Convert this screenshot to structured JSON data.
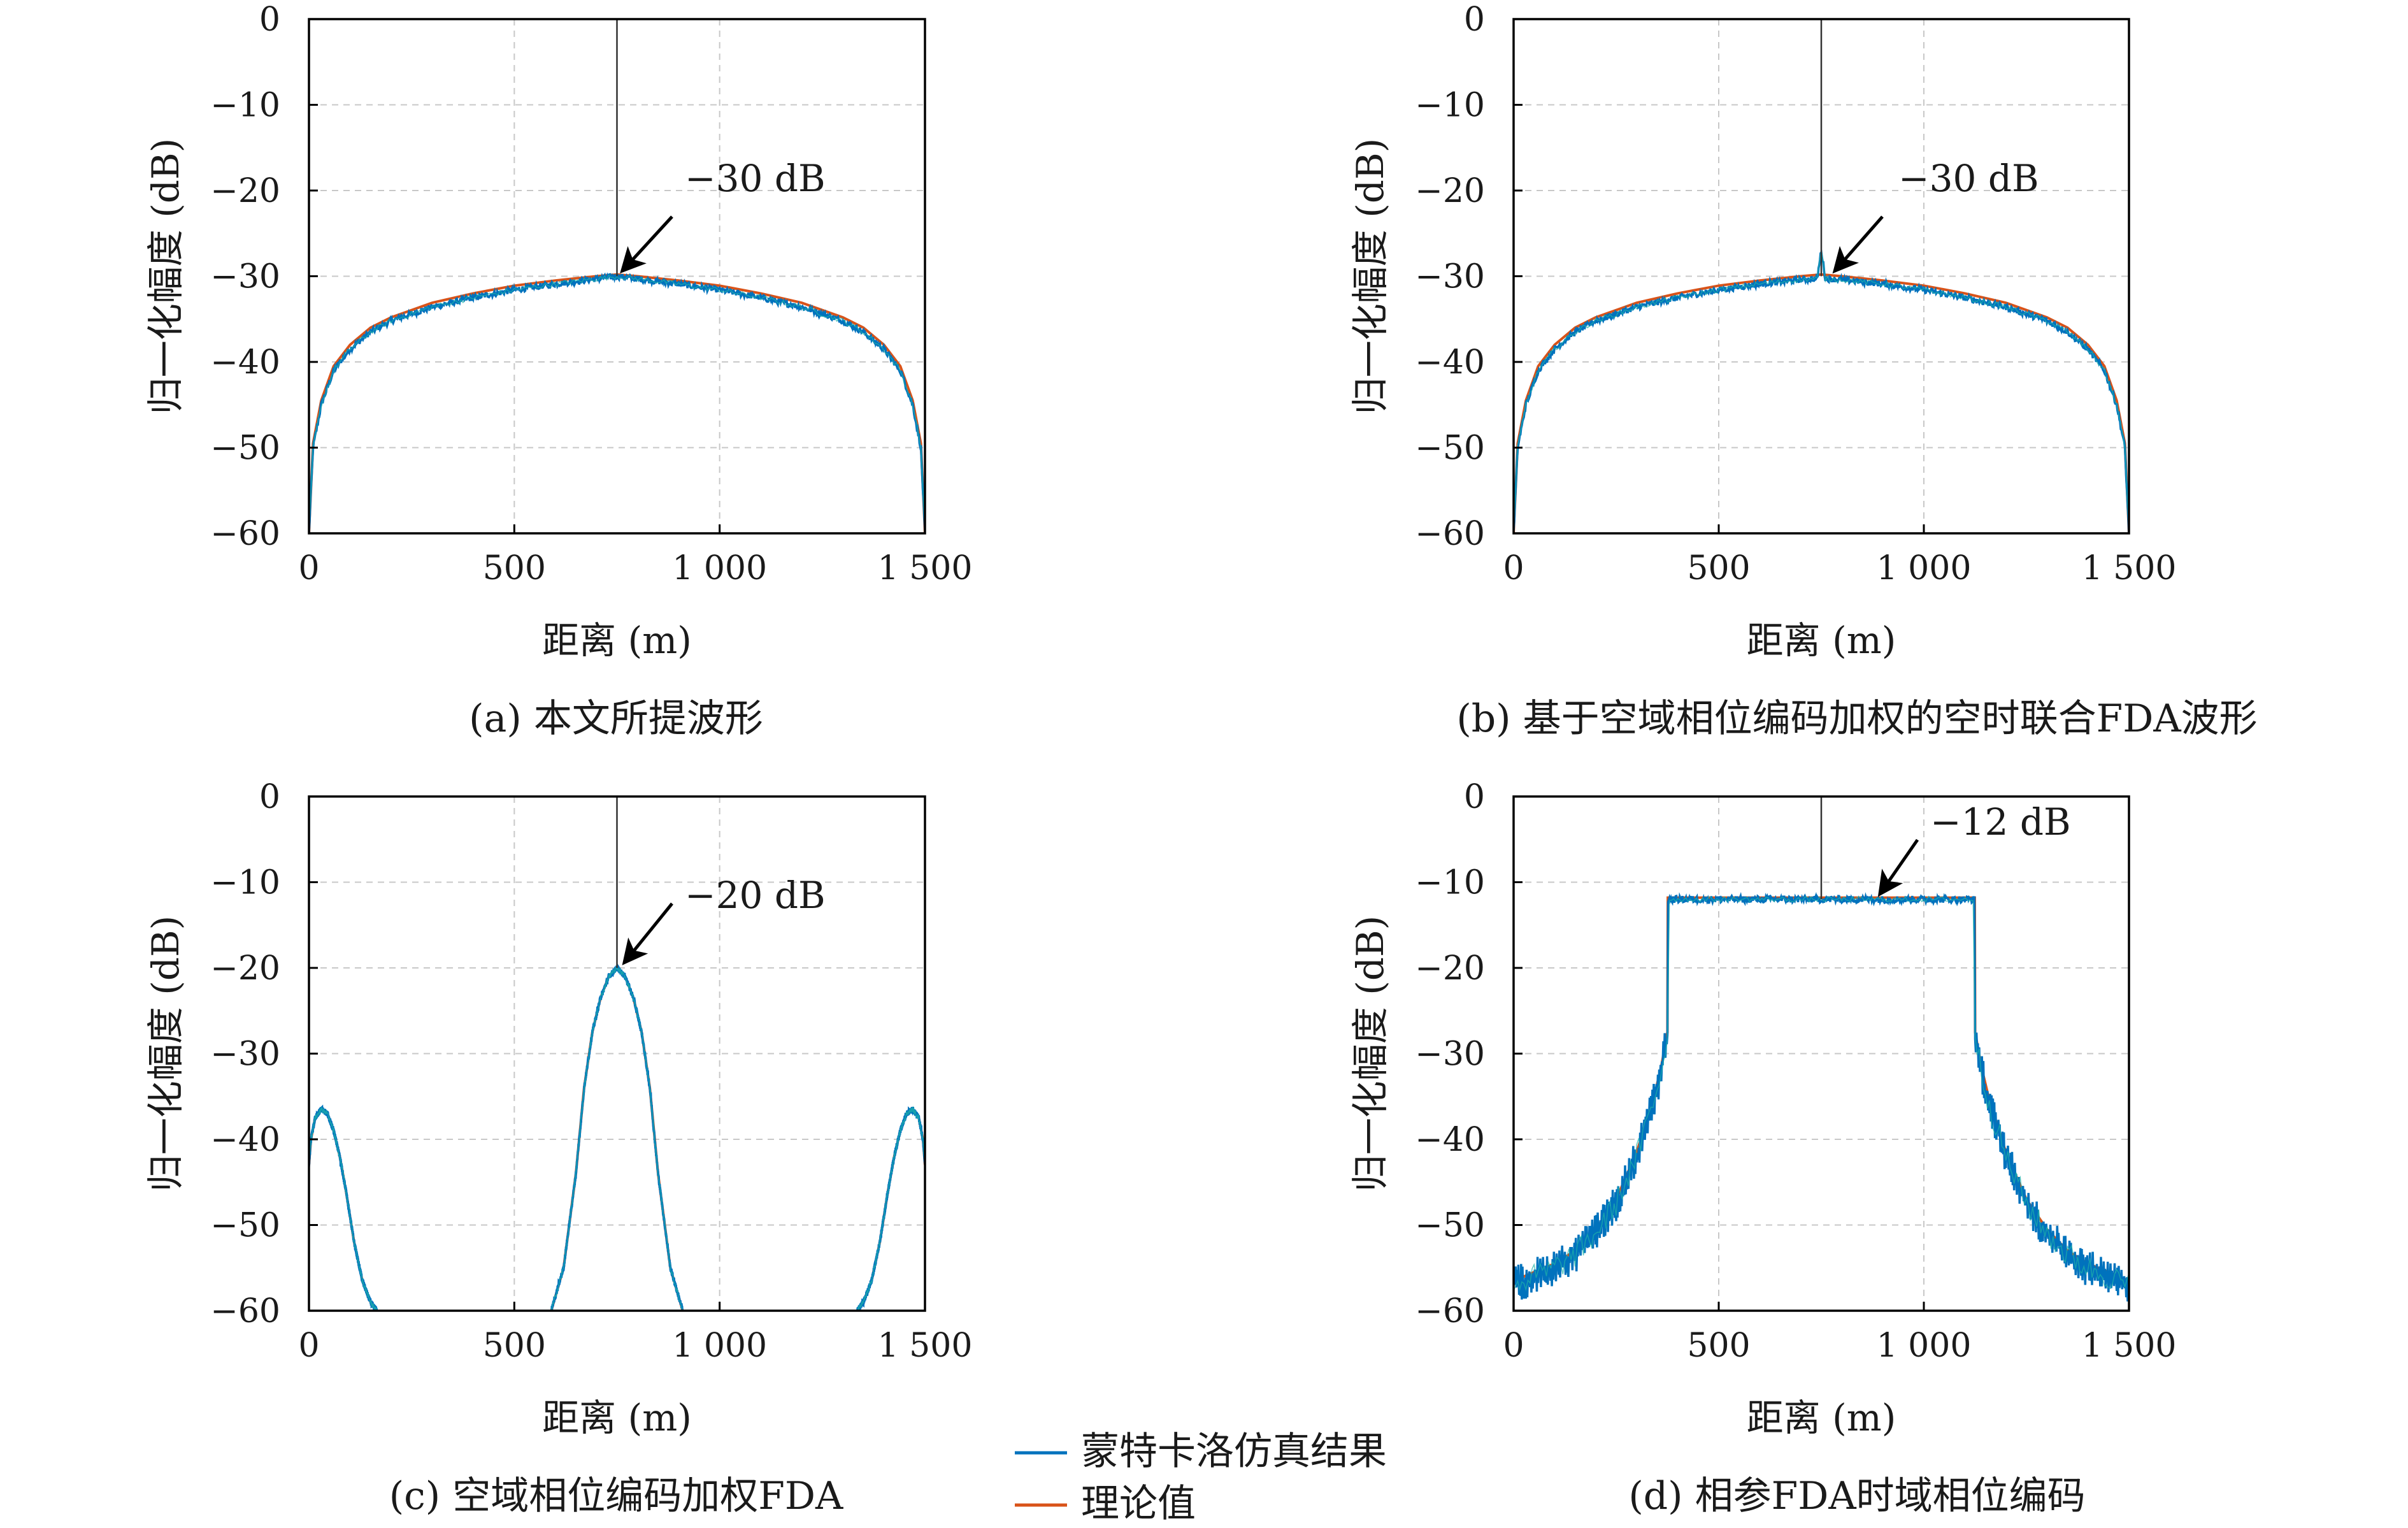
{
  "figure": {
    "legend": {
      "items": [
        {
          "label": "蒙特卡洛仿真结果",
          "color": "#0072BD"
        },
        {
          "label": "理论值",
          "color": "#D95319"
        }
      ],
      "placement": "bottom-center"
    },
    "colors": {
      "simulation": "#0072BD",
      "theory": "#D95319",
      "simulation_alt": "#1fb3a8",
      "spike": "#333333",
      "grid": "#c8c8c8"
    }
  },
  "chart_data": [
    {
      "type": "line",
      "caption": "(a) 本文所提波形",
      "xlabel": "距离 (m)",
      "ylabel": "归一化幅度 (dB)",
      "xlim": [
        0,
        1500
      ],
      "ylim": [
        -60,
        0
      ],
      "xticks": [
        0,
        500,
        1000,
        1500
      ],
      "xtick_labels": [
        "0",
        "500",
        "1 000",
        "1 500"
      ],
      "yticks": [
        0,
        -10,
        -20,
        -30,
        -40,
        -50,
        -60
      ],
      "ytick_labels": [
        "0",
        "−10",
        "−20",
        "−30",
        "−40",
        "−50",
        "−60"
      ],
      "grid": true,
      "annotation": {
        "text": "−30 dB",
        "x": 750,
        "y": -30
      },
      "mainlobe_peak": {
        "x": 750,
        "y": 0
      },
      "series": [
        {
          "name": "蒙特卡洛仿真结果",
          "x": [
            0,
            10,
            30,
            60,
            100,
            150,
            200,
            300,
            400,
            500,
            600,
            700,
            750,
            800,
            900,
            1000,
            1100,
            1200,
            1300,
            1350,
            1400,
            1440,
            1470,
            1490,
            1500
          ],
          "y": [
            -60,
            -50,
            -45,
            -41,
            -38.5,
            -36.5,
            -35.2,
            -33.6,
            -32.5,
            -31.6,
            -30.9,
            -30.3,
            -30,
            -30.3,
            -30.9,
            -31.6,
            -32.5,
            -33.6,
            -35.2,
            -36.5,
            -38.5,
            -41,
            -45,
            -50,
            -60
          ]
        },
        {
          "name": "理论值",
          "x": [
            0,
            10,
            30,
            60,
            100,
            150,
            200,
            300,
            400,
            500,
            600,
            700,
            750,
            800,
            900,
            1000,
            1100,
            1200,
            1300,
            1350,
            1400,
            1440,
            1470,
            1490,
            1500
          ],
          "y": [
            -60,
            -49.5,
            -44.5,
            -40.5,
            -38,
            -36,
            -34.8,
            -33.1,
            -32,
            -31.1,
            -30.5,
            -30,
            -29.8,
            -30,
            -30.5,
            -31.1,
            -32,
            -33.1,
            -34.8,
            -36,
            -38,
            -40.5,
            -44.5,
            -49.5,
            -60
          ]
        }
      ]
    },
    {
      "type": "line",
      "caption": "(b) 基于空域相位编码加权的空时联合FDA波形",
      "xlabel": "距离 (m)",
      "ylabel": "归一化幅度 (dB)",
      "xlim": [
        0,
        1500
      ],
      "ylim": [
        -60,
        0
      ],
      "xticks": [
        0,
        500,
        1000,
        1500
      ],
      "xtick_labels": [
        "0",
        "500",
        "1 000",
        "1 500"
      ],
      "yticks": [
        0,
        -10,
        -20,
        -30,
        -40,
        -50,
        -60
      ],
      "ytick_labels": [
        "0",
        "−10",
        "−20",
        "−30",
        "−40",
        "−50",
        "−60"
      ],
      "grid": true,
      "annotation": {
        "text": "−30 dB",
        "x": 770,
        "y": -30
      },
      "mainlobe_peak": {
        "x": 750,
        "y": 0
      },
      "series": [
        {
          "name": "蒙特卡洛仿真结果",
          "x": [
            0,
            10,
            30,
            60,
            100,
            150,
            200,
            300,
            400,
            500,
            600,
            700,
            740,
            750,
            760,
            800,
            900,
            1000,
            1100,
            1200,
            1300,
            1350,
            1400,
            1440,
            1470,
            1490,
            1500
          ],
          "y": [
            -60,
            -50,
            -45,
            -41,
            -38.5,
            -36.5,
            -35.2,
            -33.6,
            -32.5,
            -31.6,
            -30.9,
            -30.4,
            -30.3,
            -27,
            -30.3,
            -30.4,
            -30.9,
            -31.6,
            -32.5,
            -33.6,
            -35.2,
            -36.5,
            -38.5,
            -41,
            -45,
            -50,
            -60
          ]
        },
        {
          "name": "理论值",
          "x": [
            0,
            10,
            30,
            60,
            100,
            150,
            200,
            300,
            400,
            500,
            600,
            700,
            750,
            800,
            900,
            1000,
            1100,
            1200,
            1300,
            1350,
            1400,
            1440,
            1470,
            1490,
            1500
          ],
          "y": [
            -60,
            -49.5,
            -44.5,
            -40.5,
            -38,
            -36,
            -34.8,
            -33.1,
            -32,
            -31.1,
            -30.5,
            -30,
            -29.8,
            -30,
            -30.5,
            -31.1,
            -32,
            -33.1,
            -34.8,
            -36,
            -38,
            -40.5,
            -44.5,
            -49.5,
            -60
          ]
        }
      ]
    },
    {
      "type": "line",
      "caption": "(c) 空域相位编码加权FDA",
      "xlabel": "距离 (m)",
      "ylabel": "归一化幅度 (dB)",
      "xlim": [
        0,
        1500
      ],
      "ylim": [
        -60,
        0
      ],
      "xticks": [
        0,
        500,
        1000,
        1500
      ],
      "xtick_labels": [
        "0",
        "500",
        "1 000",
        "1 500"
      ],
      "yticks": [
        0,
        -10,
        -20,
        -30,
        -40,
        -50,
        -60
      ],
      "ytick_labels": [
        "0",
        "−10",
        "−20",
        "−30",
        "−40",
        "−50",
        "−60"
      ],
      "grid": true,
      "annotation": {
        "text": "−20 dB",
        "x": 755,
        "y": -20
      },
      "mainlobe_peak": {
        "x": 750,
        "y": 0
      },
      "series": [
        {
          "name": "蒙特卡洛仿真结果",
          "x": [
            [
              0,
              5,
              15,
              30,
              45,
              60,
              75,
              90,
              110,
              130,
              150,
              165
            ],
            [
              590,
              620,
              650,
              670,
              690,
              710,
              730,
              750,
              770,
              790,
              810,
              830,
              850,
              880,
              910
            ],
            [
              1335,
              1350,
              1370,
              1390,
              1410,
              1425,
              1440,
              1455,
              1470,
              1485,
              1495,
              1500
            ]
          ],
          "y": [
            [
              -43,
              -40,
              -37.5,
              -36.5,
              -37,
              -39,
              -42,
              -46,
              -52,
              -56.5,
              -59,
              -60
            ],
            [
              -60,
              -55,
              -44,
              -34,
              -27.5,
              -23.5,
              -21,
              -20,
              -21,
              -23.5,
              -27.5,
              -34,
              -44,
              -55,
              -60
            ],
            [
              -60,
              -59,
              -56.5,
              -52,
              -46,
              -42,
              -39,
              -37,
              -36.5,
              -37.5,
              -40,
              -43
            ]
          ]
        },
        {
          "name": "理论值",
          "x": [
            [
              0,
              5,
              15,
              30,
              45,
              60,
              75,
              90,
              110,
              130,
              150,
              165
            ],
            [
              590,
              620,
              650,
              670,
              690,
              710,
              730,
              750,
              770,
              790,
              810,
              830,
              850,
              880,
              910
            ],
            [
              1335,
              1350,
              1370,
              1390,
              1410,
              1425,
              1440,
              1455,
              1470,
              1485,
              1495,
              1500
            ]
          ],
          "y": [
            [
              -43,
              -40,
              -37.5,
              -36.5,
              -37,
              -39,
              -42,
              -46,
              -52,
              -56.5,
              -59,
              -60
            ],
            [
              -60,
              -55,
              -44,
              -34,
              -27.5,
              -23.5,
              -21,
              -20,
              -21,
              -23.5,
              -27.5,
              -34,
              -44,
              -55,
              -60
            ],
            [
              -60,
              -59,
              -56.5,
              -52,
              -46,
              -42,
              -39,
              -37,
              -36.5,
              -37.5,
              -40,
              -43
            ]
          ]
        }
      ]
    },
    {
      "type": "line",
      "caption": "(d) 相参FDA时域相位编码",
      "xlabel": "距离 (m)",
      "ylabel": "归一化幅度 (dB)",
      "xlim": [
        0,
        1500
      ],
      "ylim": [
        -60,
        0
      ],
      "xticks": [
        0,
        500,
        1000,
        1500
      ],
      "xtick_labels": [
        "0",
        "500",
        "1 000",
        "1 500"
      ],
      "yticks": [
        0,
        -10,
        -20,
        -30,
        -40,
        -50,
        -60
      ],
      "ytick_labels": [
        "0",
        "−10",
        "−20",
        "−30",
        "−40",
        "−50",
        "−60"
      ],
      "grid": true,
      "annotation": {
        "text": "−12 dB",
        "x": 880,
        "y": -12
      },
      "mainlobe_peak": {
        "x": 750,
        "y": 0
      },
      "series": [
        {
          "name": "蒙特卡洛仿真结果",
          "x": [
            0,
            50,
            100,
            150,
            200,
            250,
            300,
            340,
            360,
            375,
            376,
            1124,
            1125,
            1140,
            1160,
            1200,
            1250,
            1300,
            1350,
            1400,
            1450,
            1500
          ],
          "y": [
            -57,
            -56,
            -55,
            -53.5,
            -51,
            -47.5,
            -42,
            -36,
            -32,
            -28,
            -12,
            -12,
            -28,
            -32,
            -36,
            -42,
            -47.5,
            -51,
            -53.5,
            -55,
            -56,
            -57
          ]
        },
        {
          "name": "理论值",
          "x": [
            0,
            50,
            100,
            150,
            200,
            250,
            300,
            340,
            360,
            375,
            376,
            1124,
            1125,
            1140,
            1160,
            1200,
            1250,
            1300,
            1350,
            1400,
            1450,
            1500
          ],
          "y": [
            -56.5,
            -55.5,
            -54.5,
            -53,
            -50.5,
            -47,
            -41.5,
            -35.5,
            -31.5,
            -27.5,
            -11.8,
            -11.8,
            -27.5,
            -31.5,
            -35.5,
            -41.5,
            -47,
            -50.5,
            -53,
            -54.5,
            -55.5,
            -56.5
          ]
        }
      ]
    }
  ]
}
